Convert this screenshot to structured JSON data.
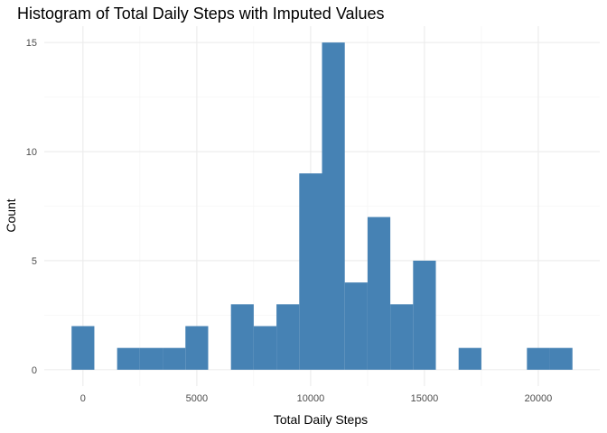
{
  "chart_data": {
    "type": "bar",
    "title": "Histogram of Total Daily Steps with Imputed Values",
    "xlabel": "Total Daily Steps",
    "ylabel": "Count",
    "bin_width": 1000,
    "bins": [
      {
        "start": -500,
        "end": 500,
        "count": 2
      },
      {
        "start": 1500,
        "end": 2500,
        "count": 1
      },
      {
        "start": 2500,
        "end": 3500,
        "count": 1
      },
      {
        "start": 3500,
        "end": 4500,
        "count": 1
      },
      {
        "start": 4500,
        "end": 5500,
        "count": 2
      },
      {
        "start": 6500,
        "end": 7500,
        "count": 3
      },
      {
        "start": 7500,
        "end": 8500,
        "count": 2
      },
      {
        "start": 8500,
        "end": 9500,
        "count": 3
      },
      {
        "start": 9500,
        "end": 10500,
        "count": 9
      },
      {
        "start": 10500,
        "end": 11500,
        "count": 15
      },
      {
        "start": 11500,
        "end": 12500,
        "count": 4
      },
      {
        "start": 12500,
        "end": 13500,
        "count": 7
      },
      {
        "start": 13500,
        "end": 14500,
        "count": 3
      },
      {
        "start": 14500,
        "end": 15500,
        "count": 5
      },
      {
        "start": 16500,
        "end": 17500,
        "count": 1
      },
      {
        "start": 19500,
        "end": 20500,
        "count": 1
      },
      {
        "start": 20500,
        "end": 21500,
        "count": 1
      }
    ],
    "xlim": [
      -1700,
      22700
    ],
    "ylim": [
      -0.75,
      15.75
    ],
    "x_ticks": [
      0,
      5000,
      10000,
      15000,
      20000
    ],
    "x_tick_labels": [
      "0",
      "5000",
      "10000",
      "15000",
      "20000"
    ],
    "y_ticks": [
      0,
      5,
      10,
      15
    ],
    "y_tick_labels": [
      "0",
      "5",
      "10",
      "15"
    ],
    "grid": true,
    "legend": "none",
    "colors": {
      "bar": "#4682B4",
      "background": "#ffffff",
      "grid": "#ebebeb"
    }
  }
}
